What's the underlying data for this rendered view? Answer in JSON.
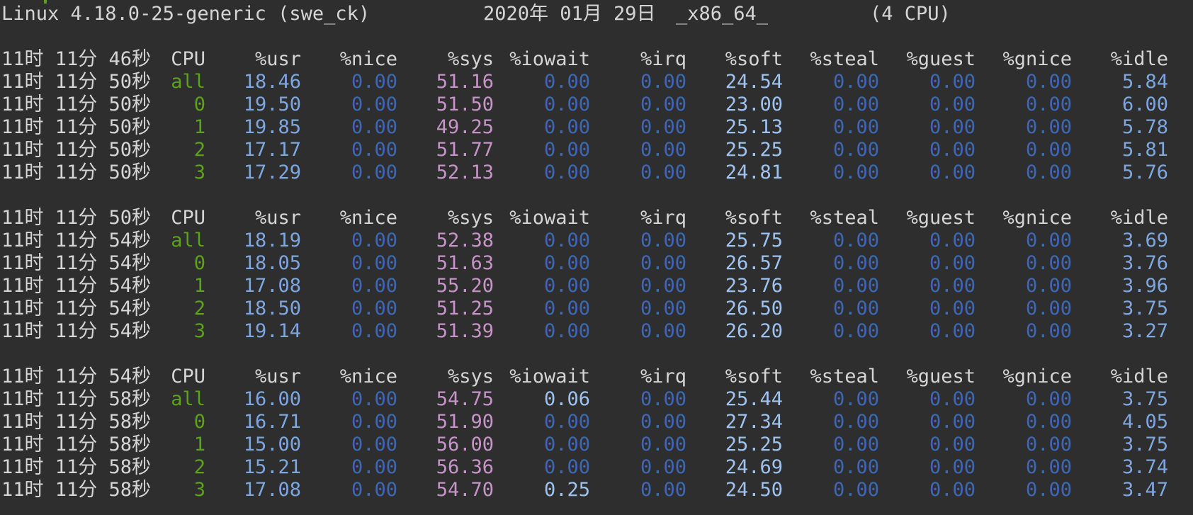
{
  "header": {
    "kernel": "Linux 4.18.0-25-generic (swe_ck)",
    "date": "2020年 01月 29日",
    "arch": "_x86_64_",
    "cpus": "(4 CPU)"
  },
  "columns": [
    "CPU",
    "%usr",
    "%nice",
    "%sys",
    "%iowait",
    "%irq",
    "%soft",
    "%steal",
    "%guest",
    "%gnice",
    "%idle"
  ],
  "blocks": [
    {
      "header_time": "11时 11分 46秒",
      "rows": [
        {
          "time": "11时 11分 50秒",
          "cpu": "all",
          "usr": "18.46",
          "nice": "0.00",
          "sys": "51.16",
          "iowait": "0.00",
          "irq": "0.00",
          "soft": "24.54",
          "steal": "0.00",
          "guest": "0.00",
          "gnice": "0.00",
          "idle": "5.84"
        },
        {
          "time": "11时 11分 50秒",
          "cpu": "0",
          "usr": "19.50",
          "nice": "0.00",
          "sys": "51.50",
          "iowait": "0.00",
          "irq": "0.00",
          "soft": "23.00",
          "steal": "0.00",
          "guest": "0.00",
          "gnice": "0.00",
          "idle": "6.00"
        },
        {
          "time": "11时 11分 50秒",
          "cpu": "1",
          "usr": "19.85",
          "nice": "0.00",
          "sys": "49.25",
          "iowait": "0.00",
          "irq": "0.00",
          "soft": "25.13",
          "steal": "0.00",
          "guest": "0.00",
          "gnice": "0.00",
          "idle": "5.78"
        },
        {
          "time": "11时 11分 50秒",
          "cpu": "2",
          "usr": "17.17",
          "nice": "0.00",
          "sys": "51.77",
          "iowait": "0.00",
          "irq": "0.00",
          "soft": "25.25",
          "steal": "0.00",
          "guest": "0.00",
          "gnice": "0.00",
          "idle": "5.81"
        },
        {
          "time": "11时 11分 50秒",
          "cpu": "3",
          "usr": "17.29",
          "nice": "0.00",
          "sys": "52.13",
          "iowait": "0.00",
          "irq": "0.00",
          "soft": "24.81",
          "steal": "0.00",
          "guest": "0.00",
          "gnice": "0.00",
          "idle": "5.76"
        }
      ]
    },
    {
      "header_time": "11时 11分 50秒",
      "rows": [
        {
          "time": "11时 11分 54秒",
          "cpu": "all",
          "usr": "18.19",
          "nice": "0.00",
          "sys": "52.38",
          "iowait": "0.00",
          "irq": "0.00",
          "soft": "25.75",
          "steal": "0.00",
          "guest": "0.00",
          "gnice": "0.00",
          "idle": "3.69"
        },
        {
          "time": "11时 11分 54秒",
          "cpu": "0",
          "usr": "18.05",
          "nice": "0.00",
          "sys": "51.63",
          "iowait": "0.00",
          "irq": "0.00",
          "soft": "26.57",
          "steal": "0.00",
          "guest": "0.00",
          "gnice": "0.00",
          "idle": "3.76"
        },
        {
          "time": "11时 11分 54秒",
          "cpu": "1",
          "usr": "17.08",
          "nice": "0.00",
          "sys": "55.20",
          "iowait": "0.00",
          "irq": "0.00",
          "soft": "23.76",
          "steal": "0.00",
          "guest": "0.00",
          "gnice": "0.00",
          "idle": "3.96"
        },
        {
          "time": "11时 11分 54秒",
          "cpu": "2",
          "usr": "18.50",
          "nice": "0.00",
          "sys": "51.25",
          "iowait": "0.00",
          "irq": "0.00",
          "soft": "26.50",
          "steal": "0.00",
          "guest": "0.00",
          "gnice": "0.00",
          "idle": "3.75"
        },
        {
          "time": "11时 11分 54秒",
          "cpu": "3",
          "usr": "19.14",
          "nice": "0.00",
          "sys": "51.39",
          "iowait": "0.00",
          "irq": "0.00",
          "soft": "26.20",
          "steal": "0.00",
          "guest": "0.00",
          "gnice": "0.00",
          "idle": "3.27"
        }
      ]
    },
    {
      "header_time": "11时 11分 54秒",
      "rows": [
        {
          "time": "11时 11分 58秒",
          "cpu": "all",
          "usr": "16.00",
          "nice": "0.00",
          "sys": "54.75",
          "iowait": "0.06",
          "irq": "0.00",
          "soft": "25.44",
          "steal": "0.00",
          "guest": "0.00",
          "gnice": "0.00",
          "idle": "3.75"
        },
        {
          "time": "11时 11分 58秒",
          "cpu": "0",
          "usr": "16.71",
          "nice": "0.00",
          "sys": "51.90",
          "iowait": "0.00",
          "irq": "0.00",
          "soft": "27.34",
          "steal": "0.00",
          "guest": "0.00",
          "gnice": "0.00",
          "idle": "4.05"
        },
        {
          "time": "11时 11分 58秒",
          "cpu": "1",
          "usr": "15.00",
          "nice": "0.00",
          "sys": "56.00",
          "iowait": "0.00",
          "irq": "0.00",
          "soft": "25.25",
          "steal": "0.00",
          "guest": "0.00",
          "gnice": "0.00",
          "idle": "3.75"
        },
        {
          "time": "11时 11分 58秒",
          "cpu": "2",
          "usr": "15.21",
          "nice": "0.00",
          "sys": "56.36",
          "iowait": "0.00",
          "irq": "0.00",
          "soft": "24.69",
          "steal": "0.00",
          "guest": "0.00",
          "gnice": "0.00",
          "idle": "3.74"
        },
        {
          "time": "11时 11分 58秒",
          "cpu": "3",
          "usr": "17.08",
          "nice": "0.00",
          "sys": "54.70",
          "iowait": "0.25",
          "irq": "0.00",
          "soft": "24.50",
          "steal": "0.00",
          "guest": "0.00",
          "gnice": "0.00",
          "idle": "3.47"
        }
      ]
    }
  ],
  "colors": {
    "background": "#2e2e2e",
    "text": "#d5d5d5",
    "cpu": "#5ca21a",
    "usr": "#7ea7e0",
    "zero": "#3f68b4",
    "sys": "#c794c8",
    "nonzero_blue": "#9fc3f0"
  }
}
